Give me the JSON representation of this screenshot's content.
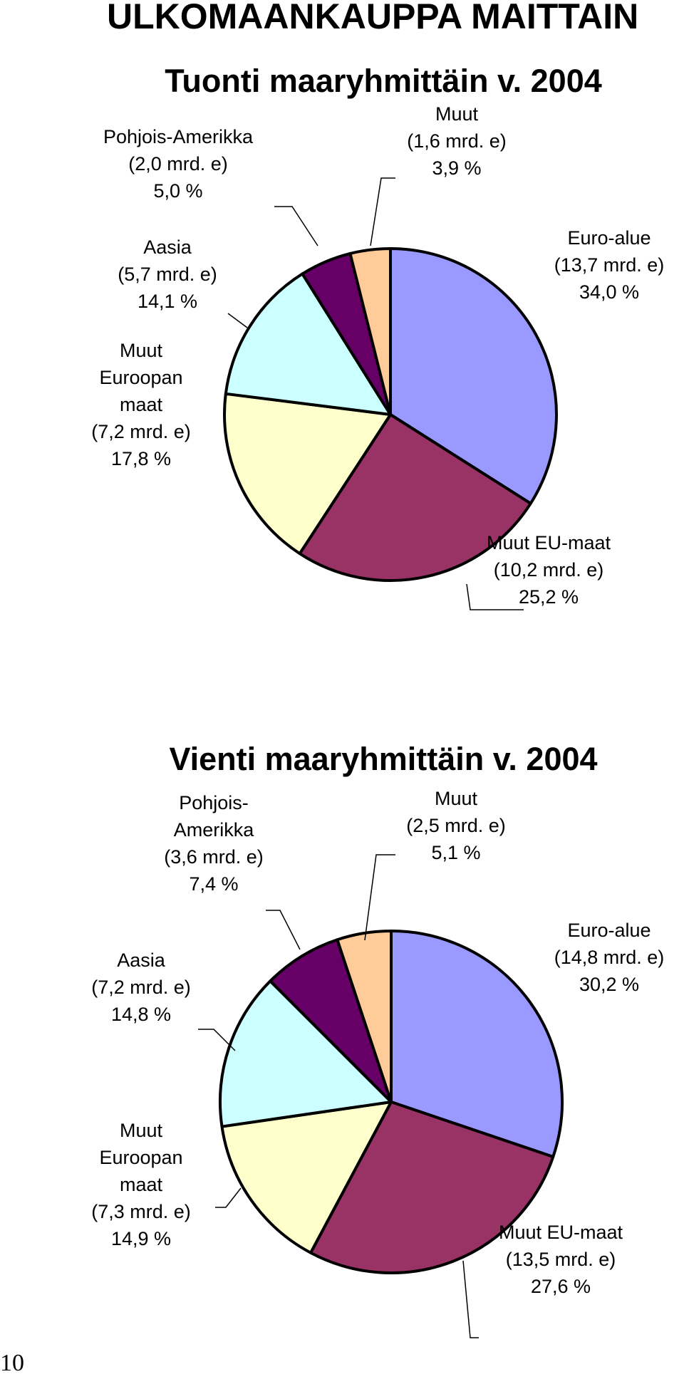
{
  "page": {
    "heading": "ULKOMAANKAUPPA MAITTAIN",
    "page_number": "10"
  },
  "colors": {
    "euro_alue": "#9999ff",
    "muut_eu_maat": "#993366",
    "muut_euroopan_maat": "#ffffcc",
    "aasia": "#ccffff",
    "pohjois_amerikka": "#660066",
    "muut": "#ffcc99",
    "outline": "#000000"
  },
  "chart_data": [
    {
      "type": "pie",
      "title": "Tuonti maaryhmittäin v. 2004",
      "slices": [
        {
          "key": "euro_alue",
          "value": 34.0,
          "color": "#9999ff",
          "lines": [
            "Euro-alue",
            "(13,7 mrd. e)",
            "34,0 %"
          ]
        },
        {
          "key": "muut_eu_maat",
          "value": 25.2,
          "color": "#993366",
          "lines": [
            "Muut EU-maat",
            "(10,2 mrd. e)",
            "25,2 %"
          ]
        },
        {
          "key": "muut_euroopan_maat",
          "value": 17.8,
          "color": "#ffffcc",
          "lines": [
            "Muut",
            "Euroopan",
            "maat",
            "(7,2 mrd. e)",
            "17,8 %"
          ]
        },
        {
          "key": "aasia",
          "value": 14.1,
          "color": "#ccffff",
          "lines": [
            "Aasia",
            "(5,7 mrd. e)",
            "14,1 %"
          ]
        },
        {
          "key": "pohjois_amerikka",
          "value": 5.0,
          "color": "#660066",
          "lines": [
            "Pohjois-Amerikka",
            "(2,0 mrd. e)",
            "5,0 %"
          ]
        },
        {
          "key": "muut",
          "value": 3.9,
          "color": "#ffcc99",
          "lines": [
            "Muut",
            "(1,6 mrd. e)",
            "3,9 %"
          ]
        }
      ]
    },
    {
      "type": "pie",
      "title": "Vienti maaryhmittäin v. 2004",
      "slices": [
        {
          "key": "euro_alue",
          "value": 30.2,
          "color": "#9999ff",
          "lines": [
            "Euro-alue",
            "(14,8 mrd. e)",
            "30,2 %"
          ]
        },
        {
          "key": "muut_eu_maat",
          "value": 27.6,
          "color": "#993366",
          "lines": [
            "Muut EU-maat",
            "(13,5 mrd. e)",
            "27,6 %"
          ]
        },
        {
          "key": "muut_euroopan_maat",
          "value": 14.9,
          "color": "#ffffcc",
          "lines": [
            "Muut",
            "Euroopan",
            "maat",
            "(7,3 mrd. e)",
            "14,9 %"
          ]
        },
        {
          "key": "aasia",
          "value": 14.8,
          "color": "#ccffff",
          "lines": [
            "Aasia",
            "(7,2 mrd. e)",
            "14,8 %"
          ]
        },
        {
          "key": "pohjois_amerikka",
          "value": 7.4,
          "color": "#660066",
          "lines": [
            "Pohjois-",
            "Amerikka",
            "(3,6 mrd. e)",
            "7,4 %"
          ]
        },
        {
          "key": "muut",
          "value": 5.1,
          "color": "#ffcc99",
          "lines": [
            "Muut",
            "(2,5 mrd. e)",
            "5,1 %"
          ]
        }
      ]
    }
  ]
}
